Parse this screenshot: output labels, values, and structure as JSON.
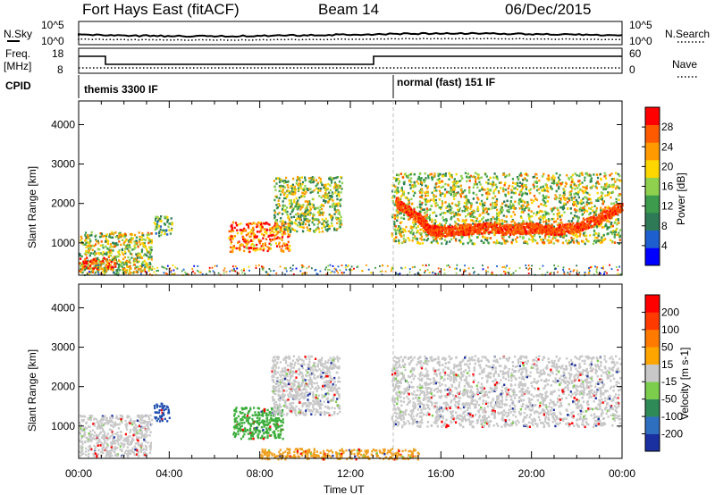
{
  "header": {
    "site": "Fort Hays East (fitACF)",
    "beam": "Beam 14",
    "date": "06/Dec/2015"
  },
  "labels": {
    "nsky": "N.Sky",
    "nsearch": "N.Search",
    "freq_top": "Freq.",
    "freq_unit": "[MHz]",
    "nave": "Nave",
    "cpid": "CPID",
    "mode_left": "themis 3300 IF",
    "mode_right": "normal (fast) 151 IF",
    "noise_left_ticks": [
      "10^5",
      "10^0"
    ],
    "noise_right_ticks": [
      "10^5",
      "10^0"
    ],
    "freq_left_ticks": [
      "18",
      "8"
    ],
    "nave_right_ticks": [
      "60",
      "0"
    ]
  },
  "chart_data": {
    "type": "heatmap",
    "xlabel": "Time UT",
    "xticks": [
      "00:00",
      "04:00",
      "08:00",
      "12:00",
      "16:00",
      "20:00",
      "00:00"
    ],
    "xlim_hours": [
      0,
      24
    ],
    "ylabel": "Slant Range [km]",
    "yticks": [
      1000,
      2000,
      3000,
      4000
    ],
    "ylim_km": [
      180,
      4600
    ],
    "cpid_change_hour": 14.0,
    "panels": [
      {
        "name": "power",
        "colorbar_label": "Power [dB]",
        "colorbar_ticks": [
          "28",
          "24",
          "20",
          "16",
          "12",
          "8",
          "4"
        ],
        "colors": [
          "#0000ff",
          "#1e5fd0",
          "#2f7a56",
          "#3c9b4c",
          "#8fd14f",
          "#ffd700",
          "#ff9a00",
          "#ff5a00",
          "#ff0000"
        ],
        "regions": [
          {
            "t0": 0.0,
            "t1": 3.2,
            "r0": 250,
            "r1": 1300,
            "v": 0.55
          },
          {
            "t0": 0.0,
            "t1": 1.6,
            "r0": 350,
            "r1": 650,
            "v": 0.95
          },
          {
            "t0": 3.3,
            "t1": 4.1,
            "r0": 1200,
            "r1": 1700,
            "v": 0.4
          },
          {
            "t0": 6.6,
            "t1": 9.3,
            "r0": 800,
            "r1": 1550,
            "v": 0.85
          },
          {
            "t0": 8.6,
            "t1": 11.6,
            "r0": 1300,
            "r1": 2700,
            "v": 0.5
          },
          {
            "t0": 13.8,
            "t1": 23.9,
            "r0": 1000,
            "r1": 2800,
            "v": 0.55
          }
        ],
        "ridge": {
          "hours": [
            14.0,
            15.0,
            15.5,
            16.0,
            17.0,
            18.0,
            19.0,
            20.0,
            21.0,
            22.0,
            23.0,
            24.0
          ],
          "range_km": [
            2000,
            1600,
            1300,
            1250,
            1300,
            1350,
            1300,
            1350,
            1300,
            1350,
            1600,
            1900
          ]
        }
      },
      {
        "name": "velocity",
        "colorbar_label": "Velocity [m s-1]",
        "colorbar_ticks": [
          "200",
          "100",
          "50",
          "15",
          "-15",
          "-50",
          "-100",
          "-200"
        ],
        "colors": [
          "#1a2fa0",
          "#2f6fc0",
          "#2e8b57",
          "#7ccd4c",
          "#c8c8c8",
          "#ffa500",
          "#ff7a00",
          "#ff3a00",
          "#ff0000"
        ],
        "regions": [
          {
            "t0": 0.0,
            "t1": 3.2,
            "r0": 250,
            "r1": 1300,
            "v": "grey"
          },
          {
            "t0": 3.3,
            "t1": 4.0,
            "r0": 1150,
            "r1": 1600,
            "v": "blue"
          },
          {
            "t0": 6.8,
            "t1": 9.0,
            "r0": 700,
            "r1": 1500,
            "v": "green"
          },
          {
            "t0": 8.5,
            "t1": 11.5,
            "r0": 1300,
            "r1": 2800,
            "v": "grey"
          },
          {
            "t0": 13.8,
            "t1": 23.9,
            "r0": 1000,
            "r1": 2800,
            "v": "grey"
          },
          {
            "t0": 8.0,
            "t1": 15.0,
            "r0": 180,
            "r1": 450,
            "v": "orange"
          }
        ]
      }
    ]
  }
}
